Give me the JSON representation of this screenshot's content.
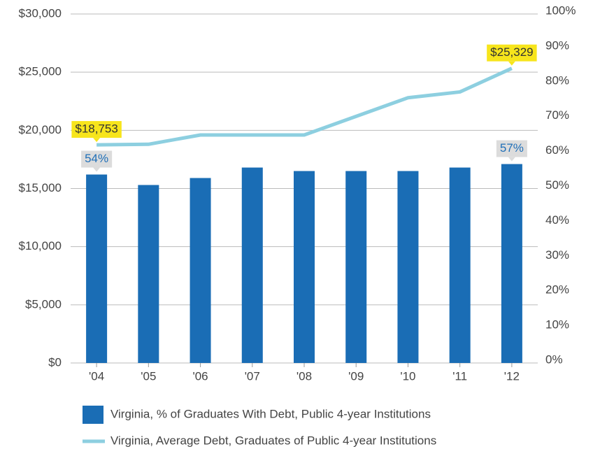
{
  "chart_data": {
    "type": "bar_line",
    "categories": [
      "'04",
      "'05",
      "'06",
      "'07",
      "'08",
      "'09",
      "'10",
      "'11",
      "'12"
    ],
    "series": [
      {
        "name": "Virginia, % of Graduates With Debt, Public 4-year Institutions",
        "type": "bar",
        "axis": "y2",
        "color": "#1a6db5",
        "values": [
          54,
          51,
          53,
          56,
          55,
          55,
          55,
          56,
          57
        ],
        "value_labels": [
          "54%",
          null,
          null,
          null,
          null,
          null,
          null,
          null,
          "57%"
        ]
      },
      {
        "name": "Virginia, Average Debt, Graduates of Public 4-year Institutions",
        "type": "line",
        "axis": "y",
        "color": "#8dcfe0",
        "values": [
          18753,
          18800,
          19600,
          19600,
          19600,
          21200,
          22800,
          23300,
          25329
        ],
        "value_labels": [
          "$18,753",
          null,
          null,
          null,
          null,
          null,
          null,
          null,
          "$25,329"
        ]
      }
    ],
    "ylim": [
      0,
      30000
    ],
    "yticks": [
      {
        "value": 0,
        "label": "$0"
      },
      {
        "value": 5000,
        "label": "$5,000"
      },
      {
        "value": 10000,
        "label": "$10,000"
      },
      {
        "value": 15000,
        "label": "$15,000"
      },
      {
        "value": 20000,
        "label": "$20,000"
      },
      {
        "value": 25000,
        "label": "$25,000"
      },
      {
        "value": 30000,
        "label": "$30,000"
      }
    ],
    "y2lim": [
      0,
      100
    ],
    "y2ticks": [
      {
        "value": 0,
        "label": "0%"
      },
      {
        "value": 10,
        "label": "10%"
      },
      {
        "value": 20,
        "label": "20%"
      },
      {
        "value": 30,
        "label": "30%"
      },
      {
        "value": 40,
        "label": "40%"
      },
      {
        "value": 50,
        "label": "50%"
      },
      {
        "value": 60,
        "label": "60%"
      },
      {
        "value": 70,
        "label": "70%"
      },
      {
        "value": 80,
        "label": "80%"
      },
      {
        "value": 90,
        "label": "90%"
      },
      {
        "value": 100,
        "label": "100%"
      }
    ],
    "grid": true
  }
}
